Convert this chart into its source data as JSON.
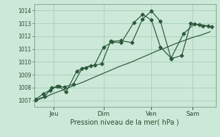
{
  "background_color": "#cce8d8",
  "grid_color": "#99ccaa",
  "line_color": "#2d5a3c",
  "marker_color": "#2d5a3c",
  "xlabel": "Pression niveau de la mer( hPa )",
  "ylim": [
    1006.5,
    1014.5
  ],
  "yticks": [
    1007,
    1008,
    1009,
    1010,
    1011,
    1012,
    1013,
    1014
  ],
  "x_ticks_labels": [
    "Jeu",
    "Dim",
    "Ven",
    "Sam"
  ],
  "x_ticks_pos": [
    0.1,
    0.38,
    0.65,
    0.88
  ],
  "series1_x": [
    0.0,
    0.03,
    0.06,
    0.09,
    0.13,
    0.17,
    0.21,
    0.26,
    0.31,
    0.36,
    0.42,
    0.47,
    0.53,
    0.58,
    0.63,
    0.68,
    0.73,
    0.78,
    0.83,
    0.88,
    0.93,
    0.98
  ],
  "series1_y": [
    1007.0,
    1007.15,
    1007.3,
    1007.5,
    1007.7,
    1007.9,
    1008.15,
    1008.4,
    1008.7,
    1009.0,
    1009.35,
    1009.65,
    1009.95,
    1010.25,
    1010.55,
    1010.85,
    1011.1,
    1011.4,
    1011.65,
    1011.9,
    1012.1,
    1012.35
  ],
  "series2_x": [
    0.0,
    0.05,
    0.09,
    0.13,
    0.17,
    0.23,
    0.28,
    0.33,
    0.38,
    0.43,
    0.48,
    0.55,
    0.6,
    0.65,
    0.7,
    0.76,
    0.83,
    0.89,
    0.94,
    0.99
  ],
  "series2_y": [
    1007.05,
    1007.3,
    1008.0,
    1008.1,
    1007.65,
    1009.3,
    1009.55,
    1009.75,
    1011.15,
    1011.55,
    1011.5,
    1013.05,
    1013.7,
    1013.25,
    1011.15,
    1010.3,
    1012.2,
    1012.95,
    1012.8,
    1012.75
  ],
  "series3_x": [
    0.0,
    0.04,
    0.08,
    0.12,
    0.16,
    0.21,
    0.26,
    0.31,
    0.37,
    0.42,
    0.48,
    0.54,
    0.6,
    0.65,
    0.7,
    0.76,
    0.82,
    0.87,
    0.92,
    0.97
  ],
  "series3_y": [
    1007.1,
    1007.5,
    1007.8,
    1008.1,
    1008.05,
    1008.25,
    1009.5,
    1009.7,
    1009.85,
    1011.6,
    1011.65,
    1011.5,
    1013.35,
    1013.95,
    1013.15,
    1010.25,
    1010.5,
    1013.0,
    1012.9,
    1012.8
  ]
}
